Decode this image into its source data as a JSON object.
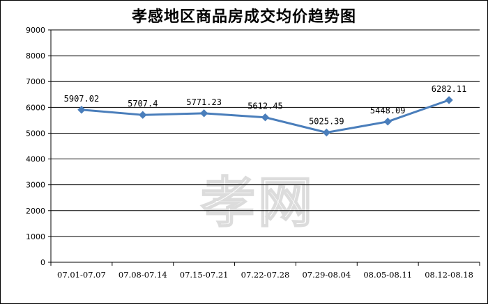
{
  "chart_data": {
    "type": "line",
    "title": "孝感地区商品房成交均价趋势图",
    "xlabel": "",
    "ylabel": "",
    "categories": [
      "07.01-07.07",
      "07.08-07.14",
      "07.15-07.21",
      "07.22-07.28",
      "07.29-08.04",
      "08.05-08.11",
      "08.12-08.18"
    ],
    "series": [
      {
        "values": [
          5907.02,
          5707.4,
          5771.23,
          5612.45,
          5025.39,
          5448.09,
          6282.11
        ],
        "labels": [
          "5907.02",
          "5707.4",
          "5771.23",
          "5612.45",
          "5025.39",
          "5448.09",
          "6282.11"
        ],
        "color": "#4a7ebb"
      }
    ],
    "ylim": [
      0,
      9000
    ],
    "yticks": [
      0,
      1000,
      2000,
      3000,
      4000,
      5000,
      6000,
      7000,
      8000,
      9000
    ],
    "grid": "horizontal",
    "legend": "none"
  },
  "watermark": "孝网"
}
